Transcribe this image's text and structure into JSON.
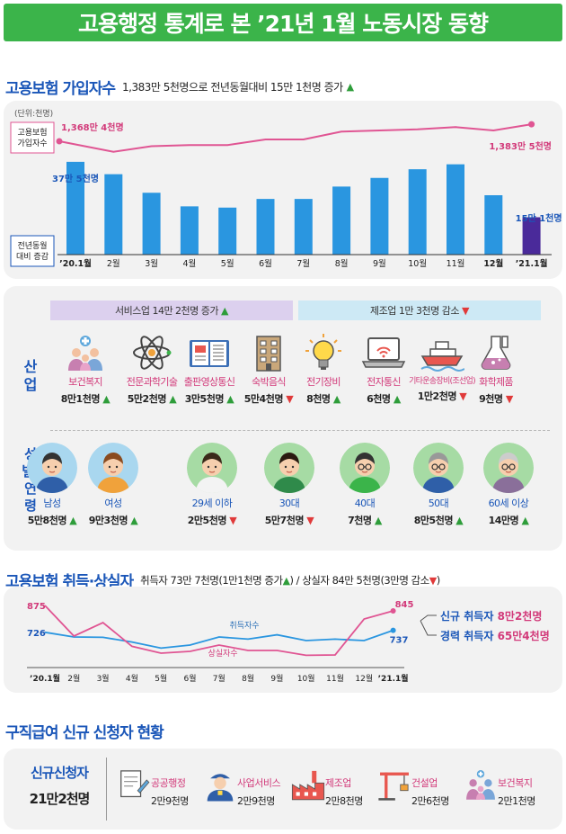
{
  "title": "고용행정 통계로 본 ’21년 1월 노동시장 동향",
  "insurance": {
    "title": "고용보험 가입자수",
    "subtitle": "1,383만 5천명으로 전년동월대비 15만 1천명 증가",
    "unit": "(단위:천명)"
  },
  "chart_data": [
    {
      "type": "line",
      "series": [
        {
          "name": "고용보험 가입자수",
          "values": [
            13684,
            13590,
            13640,
            13650,
            13650,
            13700,
            13700,
            13770,
            13780,
            13790,
            13810,
            13780,
            13835
          ]
        }
      ],
      "categories": [
        "’20.1월",
        "2월",
        "3월",
        "4월",
        "5월",
        "6월",
        "7월",
        "8월",
        "9월",
        "10월",
        "11월",
        "12월",
        "’21.1월"
      ],
      "labels": {
        "first": "1,368만 4천명",
        "last": "1,383만 5천명"
      },
      "legend": "고용보험 가입자수"
    },
    {
      "type": "bar",
      "categories": [
        "’20.1월",
        "2월",
        "3월",
        "4월",
        "5월",
        "6월",
        "7월",
        "8월",
        "9월",
        "10월",
        "11월",
        "12월",
        "’21.1월"
      ],
      "series": [
        {
          "name": "전년동월 대비 증감",
          "values": [
            375,
            325,
            250,
            195,
            190,
            225,
            225,
            275,
            310,
            345,
            365,
            240,
            151
          ]
        }
      ],
      "labels": {
        "first": "37만 5천명",
        "last": "15만 1천명"
      },
      "legend": "전년동월 대비 증감"
    },
    {
      "type": "line",
      "categories": [
        "’20.1월",
        "2월",
        "3월",
        "4월",
        "5월",
        "6월",
        "7월",
        "8월",
        "9월",
        "10월",
        "11월",
        "12월",
        "’21.1월"
      ],
      "series": [
        {
          "name": "취득자수",
          "values": [
            726,
            700,
            698,
            672,
            638,
            655,
            700,
            688,
            712,
            680,
            688,
            680,
            737
          ]
        },
        {
          "name": "상실자수",
          "values": [
            875,
            705,
            780,
            648,
            610,
            620,
            655,
            625,
            625,
            598,
            600,
            800,
            845
          ]
        }
      ],
      "labels": {
        "acq_first": "726",
        "loss_first": "875",
        "acq_last": "737",
        "loss_last": "845"
      }
    }
  ],
  "industry": {
    "service": "서비스업 14만 2천명 증가",
    "manufacturing": "제조업 1만 3천명 감소",
    "side_label": "산업",
    "items": [
      {
        "name": "보건복지",
        "value": "8만1천명",
        "dir": "up"
      },
      {
        "name": "전문과학기술",
        "value": "5만2천명",
        "dir": "up"
      },
      {
        "name": "출판영상통신",
        "value": "3만5천명",
        "dir": "up"
      },
      {
        "name": "숙박음식",
        "value": "5만4천명",
        "dir": "down"
      },
      {
        "name": "전기장비",
        "value": "8천명",
        "dir": "up"
      },
      {
        "name": "전자통신",
        "value": "6천명",
        "dir": "up"
      },
      {
        "name": "기타운송장비(조선업)",
        "value": "1만2천명",
        "dir": "down"
      },
      {
        "name": "화학제품",
        "value": "9천명",
        "dir": "down"
      }
    ]
  },
  "demographic": {
    "side_label": "성별·연령",
    "items": [
      {
        "name": "남성",
        "value": "5만8천명",
        "dir": "up"
      },
      {
        "name": "여성",
        "value": "9만3천명",
        "dir": "up"
      },
      {
        "name": "29세 이하",
        "value": "2만5천명",
        "dir": "down"
      },
      {
        "name": "30대",
        "value": "5만7천명",
        "dir": "down"
      },
      {
        "name": "40대",
        "value": "7천명",
        "dir": "up"
      },
      {
        "name": "50대",
        "value": "8만5천명",
        "dir": "up"
      },
      {
        "name": "60세 이상",
        "value": "14만명",
        "dir": "up"
      }
    ]
  },
  "acquisition": {
    "title": "고용보험 취득·상실자",
    "subtitle_a": "취득자 73만 7천명(1만1천명 증가",
    "subtitle_b": ") / 상실자 84만 5천명(3만명 감소",
    "subtitle_c": ")",
    "acq_label": "취득자수",
    "loss_label": "상실자수",
    "new_label": "신규 취득자",
    "new_value": "8만2천명",
    "exp_label": "경력 취득자",
    "exp_value": "65만4천명"
  },
  "jobseeker": {
    "title": "구직급여 신규 신청자 현황",
    "total_label": "신규신청자",
    "total_value": "21만2천명",
    "items": [
      {
        "name": "공공행정",
        "value": "2만9천명"
      },
      {
        "name": "사업서비스",
        "value": "2만9천명"
      },
      {
        "name": "제조업",
        "value": "2만8천명"
      },
      {
        "name": "건설업",
        "value": "2만6천명"
      },
      {
        "name": "보건복지",
        "value": "2만1천명"
      }
    ]
  },
  "arrows": {
    "up": "▲",
    "down": "▼"
  },
  "colors": {
    "accent_green": "#3bb44a",
    "blue_title": "#1a56b8",
    "pink": "#d23a7a",
    "bar_blue": "#2a96e0",
    "bar_last": "#4a2a9a",
    "line_pink": "#e05593"
  },
  "icons": [
    "health-icon",
    "atom-icon",
    "book-icon",
    "building-icon",
    "bulb-icon",
    "laptop-icon",
    "ship-icon",
    "flask-icon",
    "document-icon",
    "guard-icon",
    "factory-icon",
    "crane-icon",
    "family-icon"
  ]
}
